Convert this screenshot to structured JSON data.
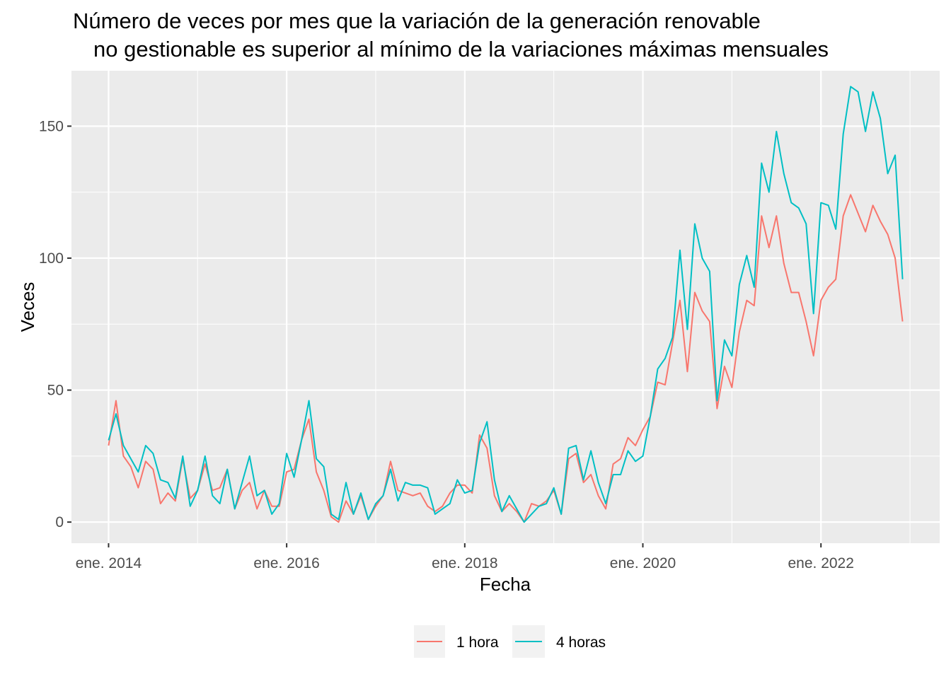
{
  "chart_data": {
    "type": "line",
    "title_line1": "Número de veces por mes que la variación de la generación renovable",
    "title_line2": "no gestionable es superior al mínimo de la variaciones máximas mensuales",
    "xlabel": "Fecha",
    "ylabel": "Veces",
    "x_start": "2014-01",
    "x_step": "1 month",
    "xlim": [
      "2013-08",
      "2023-05"
    ],
    "ylim": [
      -8,
      171
    ],
    "x_ticks": [
      {
        "date": "2014-01",
        "label": "ene. 2014"
      },
      {
        "date": "2016-01",
        "label": "ene. 2016"
      },
      {
        "date": "2018-01",
        "label": "ene. 2018"
      },
      {
        "date": "2020-01",
        "label": "ene. 2020"
      },
      {
        "date": "2022-01",
        "label": "ene. 2022"
      }
    ],
    "y_ticks": [
      0,
      50,
      100,
      150
    ],
    "grid": true,
    "legend_position": "bottom",
    "series": [
      {
        "name": "1 hora",
        "color": "#F8766D",
        "values": [
          29,
          46,
          25,
          21,
          13,
          23,
          20,
          7,
          11,
          8,
          24,
          9,
          12,
          22,
          12,
          13,
          20,
          5,
          12,
          15,
          5,
          12,
          6,
          6,
          19,
          20,
          31,
          39,
          19,
          12,
          2,
          0,
          8,
          3,
          10,
          1,
          6,
          10,
          23,
          12,
          11,
          10,
          11,
          6,
          4,
          6,
          11,
          14,
          14,
          11,
          33,
          28,
          10,
          4,
          7,
          4,
          0,
          7,
          6,
          8,
          12,
          3,
          24,
          26,
          15,
          18,
          10,
          5,
          22,
          24,
          32,
          29,
          35,
          40,
          53,
          52,
          68,
          84,
          57,
          87,
          80,
          76,
          43,
          59,
          51,
          72,
          84,
          82,
          116,
          104,
          116,
          98,
          87,
          87,
          76,
          63,
          84,
          89,
          92,
          116,
          124,
          117,
          110,
          120,
          114,
          109,
          100,
          76
        ]
      },
      {
        "name": "4 horas",
        "color": "#00BFC4",
        "values": [
          31,
          41,
          29,
          24,
          19,
          29,
          26,
          16,
          15,
          9,
          25,
          6,
          12,
          25,
          10,
          7,
          20,
          5,
          15,
          25,
          10,
          12,
          3,
          7,
          26,
          17,
          31,
          46,
          24,
          21,
          3,
          1,
          15,
          3,
          11,
          1,
          7,
          10,
          20,
          8,
          15,
          14,
          14,
          13,
          3,
          5,
          7,
          16,
          11,
          12,
          30,
          38,
          16,
          4,
          10,
          5,
          0,
          3,
          6,
          7,
          13,
          3,
          28,
          29,
          16,
          27,
          15,
          7,
          18,
          18,
          27,
          23,
          25,
          40,
          58,
          62,
          70,
          103,
          73,
          113,
          100,
          95,
          46,
          69,
          63,
          90,
          101,
          89,
          136,
          125,
          148,
          132,
          121,
          119,
          113,
          79,
          121,
          120,
          111,
          147,
          165,
          163,
          148,
          163,
          153,
          132,
          139,
          92
        ]
      }
    ]
  }
}
